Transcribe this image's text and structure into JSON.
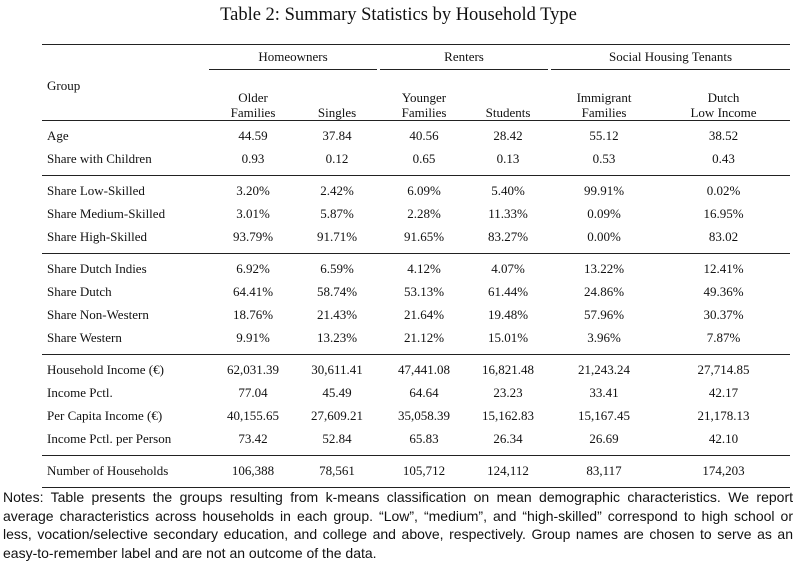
{
  "title": "Table 2: Summary Statistics by Household Type",
  "group_header": [
    "Homeowners",
    "Renters",
    "Social Housing Tenants"
  ],
  "row_label_header": "Group",
  "subgroups": [
    [
      "Older",
      "Families"
    ],
    [
      "",
      "Singles"
    ],
    [
      "Younger",
      "Families"
    ],
    [
      "",
      "Students"
    ],
    [
      "Immigrant",
      "Families"
    ],
    [
      "Dutch",
      "Low Income"
    ]
  ],
  "sections": [
    {
      "rows": [
        {
          "label": "Age",
          "values": [
            "44.59",
            "37.84",
            "40.56",
            "28.42",
            "55.12",
            "38.52"
          ]
        },
        {
          "label": "Share with Children",
          "values": [
            "0.93",
            "0.12",
            "0.65",
            "0.13",
            "0.53",
            "0.43"
          ]
        }
      ]
    },
    {
      "rows": [
        {
          "label": "Share Low-Skilled",
          "values": [
            "3.20%",
            "2.42%",
            "6.09%",
            "5.40%",
            "99.91%",
            "0.02%"
          ]
        },
        {
          "label": "Share Medium-Skilled",
          "values": [
            "3.01%",
            "5.87%",
            "2.28%",
            "11.33%",
            "0.09%",
            "16.95%"
          ]
        },
        {
          "label": "Share High-Skilled",
          "values": [
            "93.79%",
            "91.71%",
            "91.65%",
            "83.27%",
            "0.00%",
            "83.02"
          ]
        }
      ]
    },
    {
      "rows": [
        {
          "label": "Share Dutch Indies",
          "values": [
            "6.92%",
            "6.59%",
            "4.12%",
            "4.07%",
            "13.22%",
            "12.41%"
          ]
        },
        {
          "label": "Share Dutch",
          "values": [
            "64.41%",
            "58.74%",
            "53.13%",
            "61.44%",
            "24.86%",
            "49.36%"
          ]
        },
        {
          "label": "Share Non-Western",
          "values": [
            "18.76%",
            "21.43%",
            "21.64%",
            "19.48%",
            "57.96%",
            "30.37%"
          ]
        },
        {
          "label": "Share Western",
          "values": [
            "9.91%",
            "13.23%",
            "21.12%",
            "15.01%",
            "3.96%",
            "7.87%"
          ]
        }
      ]
    },
    {
      "rows": [
        {
          "label": "Household Income (€)",
          "values": [
            "62,031.39",
            "30,611.41",
            "47,441.08",
            "16,821.48",
            "21,243.24",
            "27,714.85"
          ]
        },
        {
          "label": "Income Pctl.",
          "values": [
            "77.04",
            "45.49",
            "64.64",
            "23.23",
            "33.41",
            "42.17"
          ]
        },
        {
          "label": "Per Capita Income (€)",
          "values": [
            "40,155.65",
            "27,609.21",
            "35,058.39",
            "15,162.83",
            "15,167.45",
            "21,178.13"
          ]
        },
        {
          "label": "Income Pctl. per Person",
          "values": [
            "73.42",
            "52.84",
            "65.83",
            "26.34",
            "26.69",
            "42.10"
          ]
        }
      ]
    },
    {
      "rows": [
        {
          "label": "Number of Households",
          "values": [
            "106,388",
            "78,561",
            "105,712",
            "124,112",
            "83,117",
            "174,203"
          ]
        }
      ]
    }
  ],
  "notes": "Notes: Table presents the groups resulting from k-means classification on mean demographic characteristics. We report average characteristics across households in each group. “Low”, “medium”, and “high-skilled” correspond to high school or less, vocation/selective secondary education, and college and above, respectively. Group names are chosen to serve as an easy-to-remember label and are not an outcome of the data."
}
